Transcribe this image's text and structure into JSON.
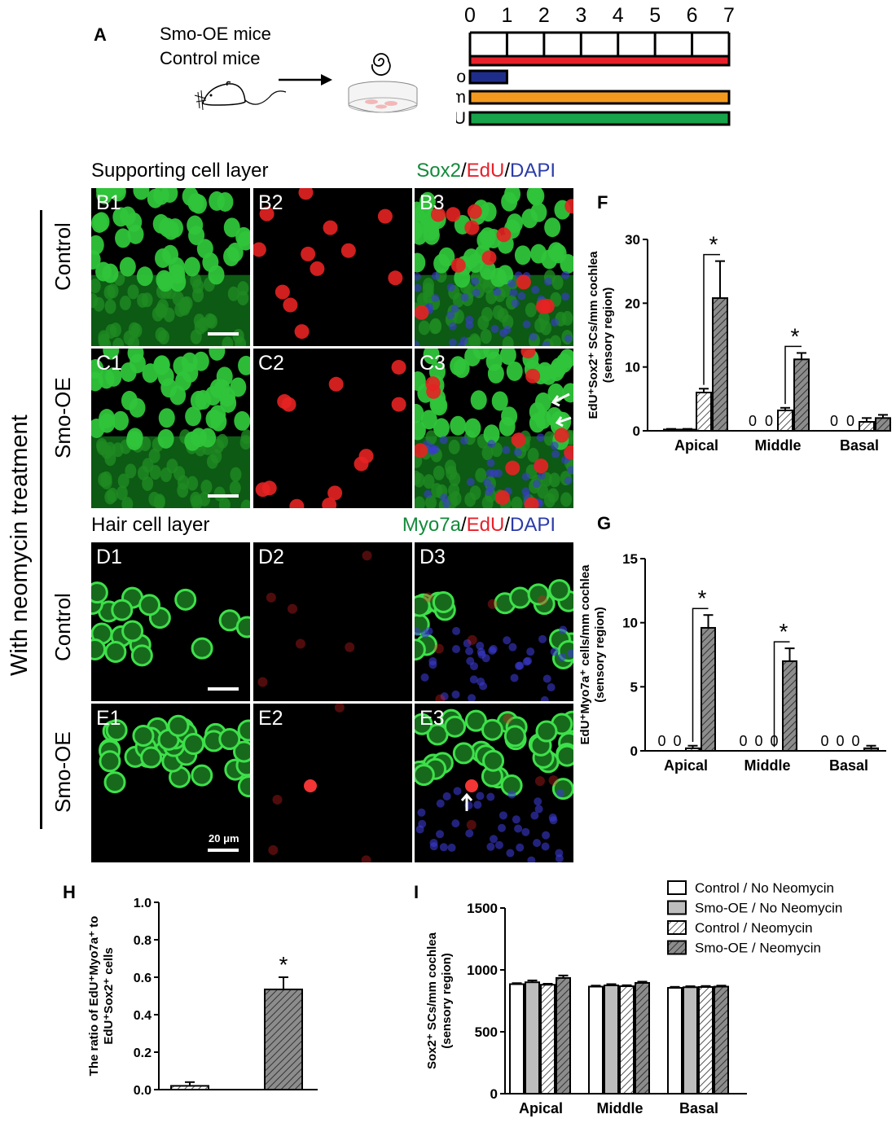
{
  "panel_a": {
    "letter": "A",
    "mice": [
      "Smo-OE mice",
      "Control mice"
    ],
    "timeline_ticks": [
      "0",
      "1",
      "2",
      "3",
      "4",
      "5",
      "6",
      "7"
    ],
    "bars": [
      {
        "label": "",
        "start_day": 0,
        "end_day": 7,
        "color": "#e8202a"
      },
      {
        "label": "Neo",
        "start_day": 0,
        "end_day": 1,
        "color": "#1f2d8a"
      },
      {
        "label": "Tm",
        "start_day": 0,
        "end_day": 7,
        "color": "#f39a1e"
      },
      {
        "label": "EdU",
        "start_day": 0,
        "end_day": 7,
        "color": "#16a34a"
      }
    ]
  },
  "side_label": "With neomycin treatment",
  "supporting": {
    "title": "Supporting cell layer",
    "stain": [
      {
        "text": "Sox2",
        "color": "#138a3a"
      },
      {
        "text": "/",
        "color": "#000"
      },
      {
        "text": "EdU",
        "color": "#e8202a"
      },
      {
        "text": "/",
        "color": "#000"
      },
      {
        "text": "DAPI",
        "color": "#2b3ba8"
      }
    ],
    "rows": [
      {
        "group": "Control",
        "tags": [
          "B1",
          "B2",
          "B3"
        ]
      },
      {
        "group": "Smo-OE",
        "tags": [
          "C1",
          "C2",
          "C3"
        ]
      }
    ]
  },
  "hair": {
    "title": "Hair cell layer",
    "stain": [
      {
        "text": "Myo7a",
        "color": "#138a3a"
      },
      {
        "text": "/",
        "color": "#000"
      },
      {
        "text": "EdU",
        "color": "#e8202a"
      },
      {
        "text": "/",
        "color": "#000"
      },
      {
        "text": "DAPI",
        "color": "#2b3ba8"
      }
    ],
    "rows": [
      {
        "group": "Control",
        "tags": [
          "D1",
          "D2",
          "D3"
        ]
      },
      {
        "group": "Smo-OE",
        "tags": [
          "E1",
          "E2",
          "E3"
        ]
      }
    ],
    "scale_bar": "20 μm"
  },
  "chart_data": [
    {
      "id": "F",
      "type": "bar",
      "ylabel": "EdU⁺Sox2⁺ SCs/mm cochlea (sensory region)",
      "ylim": [
        0,
        30
      ],
      "yticks": [
        0,
        10,
        20,
        30
      ],
      "categories": [
        "Apical",
        "Middle",
        "Basal"
      ],
      "series": [
        {
          "values": [
            0.2,
            0,
            0
          ],
          "errors": [
            0.1,
            0,
            0
          ],
          "pattern": "white"
        },
        {
          "values": [
            0.2,
            0,
            0
          ],
          "errors": [
            0.1,
            0,
            0
          ],
          "pattern": "grey"
        },
        {
          "values": [
            6.0,
            3.2,
            1.4
          ],
          "errors": [
            0.6,
            0.4,
            0.6
          ],
          "pattern": "light-hatch"
        },
        {
          "values": [
            20.8,
            11.2,
            2.0
          ],
          "errors": [
            5.8,
            1.0,
            0.5
          ],
          "pattern": "dark-hatch"
        }
      ],
      "zero_labels": [
        [],
        [
          "0",
          "0"
        ],
        [
          "0",
          "0"
        ]
      ],
      "significance": [
        "*",
        "*",
        ""
      ]
    },
    {
      "id": "G",
      "type": "bar",
      "ylabel": "EdU⁺Myo7a⁺ cells/mm cochlea (sensory region)",
      "ylim": [
        0,
        15
      ],
      "yticks": [
        0,
        5,
        10,
        15
      ],
      "categories": [
        "Apical",
        "Middle",
        "Basal"
      ],
      "series": [
        {
          "values": [
            0,
            0,
            0
          ],
          "errors": [
            0,
            0,
            0
          ],
          "pattern": "white"
        },
        {
          "values": [
            0,
            0,
            0
          ],
          "errors": [
            0,
            0,
            0
          ],
          "pattern": "grey"
        },
        {
          "values": [
            0.2,
            0,
            0
          ],
          "errors": [
            0.2,
            0,
            0
          ],
          "pattern": "light-hatch"
        },
        {
          "values": [
            9.6,
            7.0,
            0.2
          ],
          "errors": [
            1.0,
            1.0,
            0.2
          ],
          "pattern": "dark-hatch"
        }
      ],
      "zero_labels": [
        [
          "0",
          "0"
        ],
        [
          "0",
          "0",
          "0"
        ],
        [
          "0",
          "0",
          "0"
        ]
      ],
      "significance": [
        "*",
        "*",
        ""
      ]
    },
    {
      "id": "H",
      "type": "bar",
      "ylabel": "The ratio of EdU⁺Myo7a⁺ to EdU⁺Sox2⁺ cells",
      "ylim": [
        0,
        1.0
      ],
      "yticks": [
        0.0,
        0.2,
        0.4,
        0.6,
        0.8,
        1.0
      ],
      "categories": [
        "",
        ""
      ],
      "series": [
        {
          "values": [
            0.02,
            0.535
          ],
          "errors": [
            0.02,
            0.065
          ],
          "patterns": [
            "light-hatch",
            "dark-hatch"
          ]
        }
      ],
      "significance": [
        "",
        "*"
      ]
    },
    {
      "id": "I",
      "type": "bar",
      "ylabel": "Sox2⁺ SCs/mm cochlea (sensory region)",
      "ylim": [
        0,
        1500
      ],
      "yticks": [
        0,
        500,
        1000,
        1500
      ],
      "categories": [
        "Apical",
        "Middle",
        "Basal"
      ],
      "series": [
        {
          "name": "Control / No Neomycin",
          "values": [
            885,
            865,
            855
          ],
          "errors": [
            8,
            8,
            8
          ],
          "pattern": "white"
        },
        {
          "name": "Smo-OE / No Neomycin",
          "values": [
            900,
            875,
            860
          ],
          "errors": [
            15,
            10,
            8
          ],
          "pattern": "grey"
        },
        {
          "name": "Control / Neomycin",
          "values": [
            880,
            868,
            862
          ],
          "errors": [
            8,
            8,
            8
          ],
          "pattern": "light-hatch"
        },
        {
          "name": "Smo-OE / Neomycin",
          "values": [
            935,
            895,
            865
          ],
          "errors": [
            20,
            10,
            8
          ],
          "pattern": "dark-hatch"
        }
      ],
      "legend_position": "top-right"
    }
  ]
}
